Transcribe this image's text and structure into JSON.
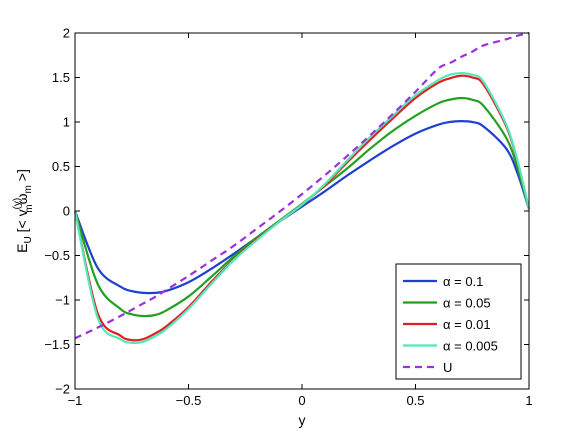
{
  "chart_data": {
    "type": "line",
    "xlabel": "y",
    "ylabel": "E_U [<v_m^(y) ω_m>]",
    "xlim": [
      -1,
      1
    ],
    "ylim": [
      -2,
      2
    ],
    "xticks": [
      -1,
      -0.5,
      0,
      0.5,
      1
    ],
    "xtick_labels": [
      "−1",
      "−0.5",
      "0",
      "0.5",
      "1"
    ],
    "yticks": [
      -2,
      -1.5,
      -1,
      -0.5,
      0,
      0.5,
      1,
      1.5,
      2
    ],
    "ytick_labels": [
      "−2",
      "−1.5",
      "−1",
      "−0.5",
      "0",
      "0.5",
      "1",
      "1.5",
      "2"
    ],
    "grid": false,
    "legend_position": "bottom-right",
    "x": [
      -1.0,
      -0.9,
      -0.8,
      -0.75,
      -0.7,
      -0.65,
      -0.6,
      -0.5,
      -0.4,
      -0.3,
      -0.2,
      -0.1,
      0.0,
      0.1,
      0.2,
      0.3,
      0.4,
      0.5,
      0.6,
      0.65,
      0.7,
      0.75,
      0.8,
      0.9,
      0.95,
      1.0
    ],
    "series": [
      {
        "name": "α = 0.1",
        "color": "#1f3fcf",
        "dashed": false,
        "values": [
          0.0,
          -0.64,
          -0.85,
          -0.9,
          -0.92,
          -0.92,
          -0.9,
          -0.8,
          -0.65,
          -0.48,
          -0.3,
          -0.12,
          0.05,
          0.22,
          0.4,
          0.57,
          0.73,
          0.87,
          0.97,
          1.0,
          1.01,
          1.0,
          0.95,
          0.7,
          0.42,
          0.02
        ]
      },
      {
        "name": "α = 0.05",
        "color": "#22a020",
        "dashed": false,
        "values": [
          0.0,
          -0.82,
          -1.1,
          -1.16,
          -1.18,
          -1.17,
          -1.12,
          -0.96,
          -0.74,
          -0.51,
          -0.3,
          -0.11,
          0.08,
          0.28,
          0.48,
          0.7,
          0.9,
          1.07,
          1.21,
          1.25,
          1.27,
          1.25,
          1.18,
          0.82,
          0.48,
          0.02
        ]
      },
      {
        "name": "α = 0.01",
        "color": "#e02020",
        "dashed": false,
        "values": [
          0.0,
          -1.15,
          -1.4,
          -1.45,
          -1.44,
          -1.38,
          -1.3,
          -1.08,
          -0.8,
          -0.54,
          -0.32,
          -0.12,
          0.07,
          0.29,
          0.55,
          0.8,
          1.04,
          1.27,
          1.44,
          1.49,
          1.52,
          1.5,
          1.42,
          0.95,
          0.55,
          0.02
        ]
      },
      {
        "name": "α = 0.005",
        "color": "#52e8b8",
        "dashed": false,
        "values": [
          0.0,
          -1.2,
          -1.44,
          -1.48,
          -1.47,
          -1.41,
          -1.33,
          -1.1,
          -0.82,
          -0.55,
          -0.33,
          -0.12,
          0.07,
          0.3,
          0.57,
          0.83,
          1.07,
          1.3,
          1.47,
          1.53,
          1.55,
          1.53,
          1.45,
          0.97,
          0.56,
          0.02
        ]
      },
      {
        "name": "U",
        "color": "#9b30e0",
        "dashed": true,
        "values": [
          -1.43,
          -1.31,
          -1.18,
          -1.11,
          -1.04,
          -0.97,
          -0.89,
          -0.73,
          -0.56,
          -0.39,
          -0.2,
          -0.01,
          0.19,
          0.4,
          0.62,
          0.85,
          1.09,
          1.34,
          1.6,
          1.66,
          1.73,
          1.79,
          1.86,
          1.93,
          1.97,
          2.0
        ]
      }
    ]
  }
}
